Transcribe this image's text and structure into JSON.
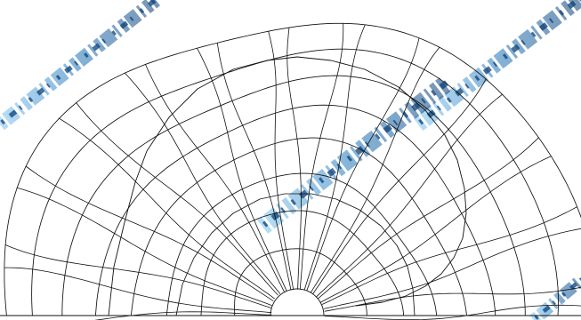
{
  "diagram": {
    "type": "semicircular-mesh",
    "ring_count": 8,
    "spoke_count": 24,
    "line_color": "#111111",
    "background_color": "#ffffff",
    "watermark_color": "#1f74b8",
    "watermark_accent": "#0a3f78",
    "watermark_text": "广州市市场监督管理局"
  }
}
